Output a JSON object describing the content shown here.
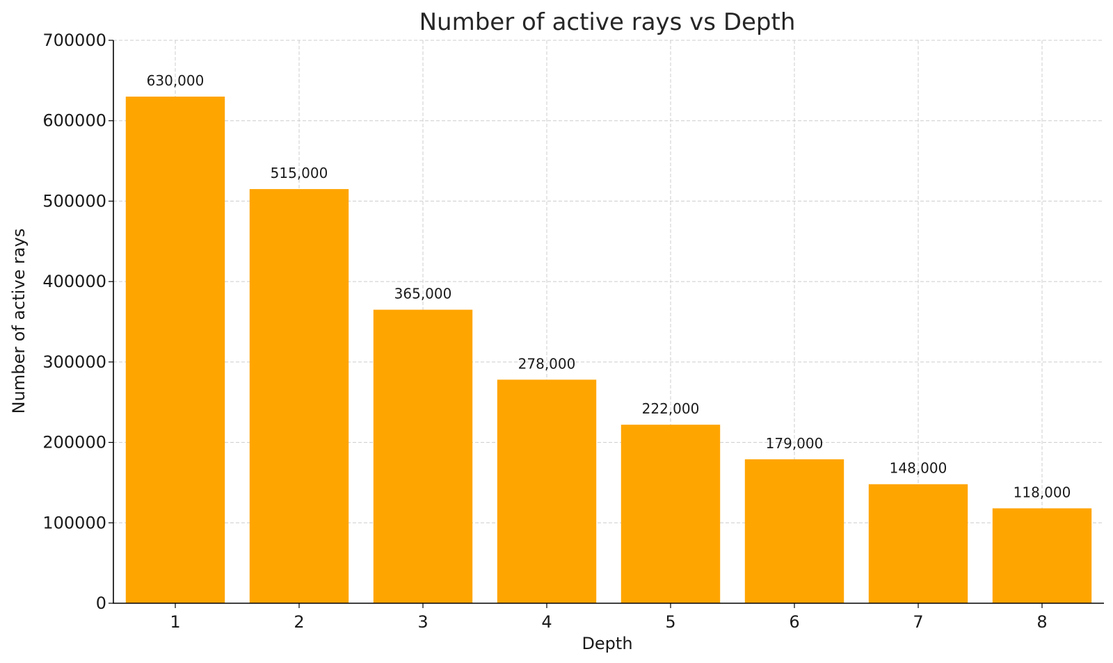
{
  "chart_data": {
    "type": "bar",
    "title": "Number of active rays vs Depth",
    "xlabel": "Depth",
    "ylabel": "Number of active rays",
    "categories": [
      "1",
      "2",
      "3",
      "4",
      "5",
      "6",
      "7",
      "8"
    ],
    "values": [
      630000,
      515000,
      365000,
      278000,
      222000,
      179000,
      148000,
      118000
    ],
    "value_labels": [
      "630,000",
      "515,000",
      "365,000",
      "278,000",
      "222,000",
      "179,000",
      "148,000",
      "118,000"
    ],
    "ylim": [
      0,
      700000
    ],
    "yticks": [
      0,
      100000,
      200000,
      300000,
      400000,
      500000,
      600000,
      700000
    ],
    "ytick_labels": [
      "0",
      "100000",
      "200000",
      "300000",
      "400000",
      "500000",
      "600000",
      "700000"
    ],
    "grid": true,
    "bar_color": "#FFA500"
  }
}
